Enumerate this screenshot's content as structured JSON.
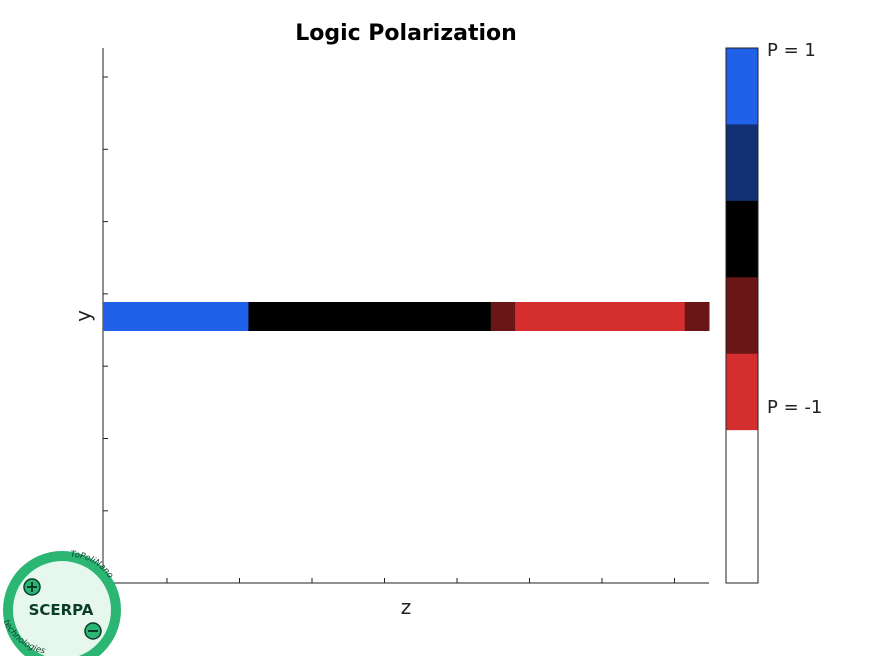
{
  "chart_data": {
    "type": "heatmap",
    "title": "Logic Polarization",
    "xlabel": "z",
    "ylabel": "y",
    "cells": [
      {
        "z_start": 0,
        "z_end": 6,
        "value": 1
      },
      {
        "z_start": 6,
        "z_end": 16,
        "value": 0
      },
      {
        "z_start": 16,
        "z_end": 17,
        "value": -0.5
      },
      {
        "z_start": 17,
        "z_end": 24,
        "value": -1
      },
      {
        "z_start": 24,
        "z_end": 25,
        "value": -0.5
      }
    ],
    "xlim": [
      0,
      25
    ],
    "colorbar": {
      "top_label": "P = 1",
      "bottom_label": "P = -1",
      "bands": [
        "#2160e8",
        "#112f73",
        "#000000",
        "#6b1616",
        "#d42e2e",
        "#ffffff"
      ]
    },
    "value_colors": {
      "1": "#2160e8",
      "0.5": "#112f73",
      "0": "#000000",
      "-0.5": "#6b1616",
      "-1": "#d42e2e"
    }
  },
  "logo": {
    "name": "SCERPA",
    "arc_top": "ToPoliNano",
    "arc_bottom": "technologies",
    "color_fill": "#e6f7ee",
    "color_ring": "#2bb673"
  }
}
